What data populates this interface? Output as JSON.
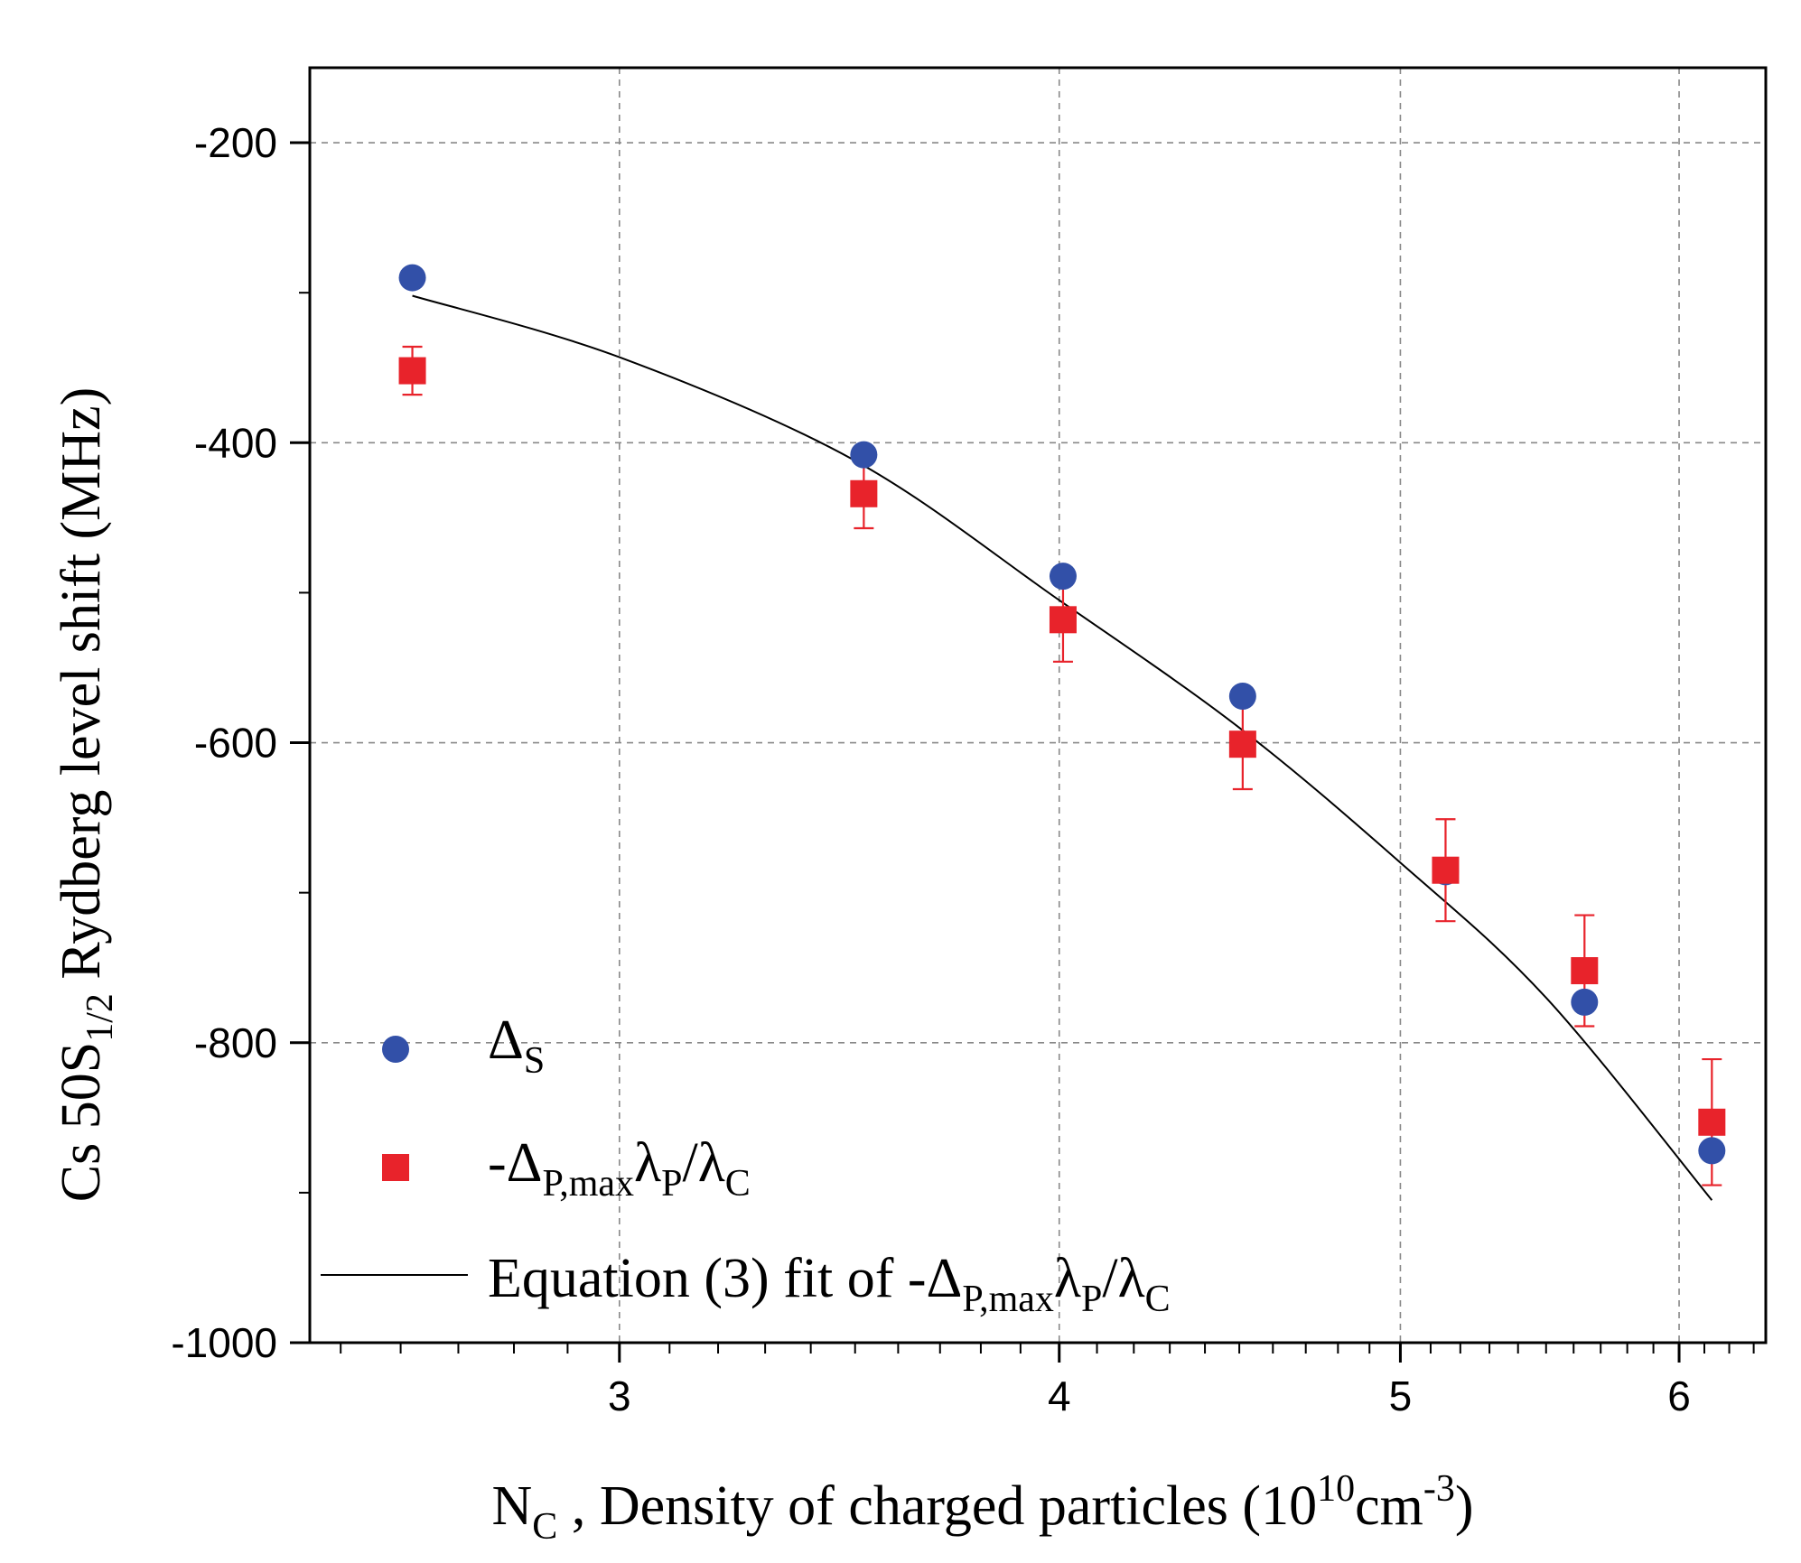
{
  "chart_data": {
    "type": "scatter",
    "xlabel": {
      "symbol": "N",
      "symbol_sub": "C",
      "text": " , Density of charged particles (10",
      "exp": "10",
      "unit": "cm",
      "unit_exp": "-3",
      "close": ")"
    },
    "ylabel": {
      "prefix": "Cs 50S",
      "sub": "1/2",
      "suffix": " Rydberg level shift (MHz)"
    },
    "x_scale": "log",
    "xlim": [
      2.45,
      6.35
    ],
    "ylim": [
      -1000,
      -150
    ],
    "x_ticks": [
      3,
      4,
      5,
      6
    ],
    "x_tick_labels": [
      "3",
      "4",
      "5",
      "6"
    ],
    "y_ticks": [
      -200,
      -400,
      -600,
      -800,
      -1000
    ],
    "y_tick_labels": [
      "-200",
      "-400",
      "-600",
      "-800",
      "-1000"
    ],
    "grid": true,
    "legend_position": "bottom-left",
    "series": [
      {
        "legend": {
          "main": "Δ",
          "sub": "S"
        },
        "marker": "circle",
        "color": "#3250a8",
        "points": [
          {
            "x": 2.62,
            "y": -290
          },
          {
            "x": 3.52,
            "y": -408
          },
          {
            "x": 4.01,
            "y": -489
          },
          {
            "x": 4.51,
            "y": -569
          },
          {
            "x": 5.15,
            "y": -686
          },
          {
            "x": 5.64,
            "y": -773
          },
          {
            "x": 6.13,
            "y": -872
          }
        ]
      },
      {
        "legend": {
          "main": "-Δ",
          "sub1": "P,max",
          "mid": "λ",
          "sub2": "P",
          "slash": "/λ",
          "sub3": "C"
        },
        "marker": "square",
        "color": "#e8232b",
        "points": [
          {
            "x": 2.62,
            "y": -352,
            "err": 16
          },
          {
            "x": 3.52,
            "y": -434,
            "err": 23
          },
          {
            "x": 4.01,
            "y": -518,
            "err": 28
          },
          {
            "x": 4.51,
            "y": -601,
            "err": 30
          },
          {
            "x": 5.15,
            "y": -685,
            "err": 34
          },
          {
            "x": 5.64,
            "y": -752,
            "err": 37
          },
          {
            "x": 6.13,
            "y": -853,
            "err": 42
          }
        ]
      },
      {
        "legend": {
          "prefix": "Equation (3) fit of -Δ",
          "sub1": "P,max",
          "mid": "λ",
          "sub2": "P",
          "slash": "/λ",
          "sub3": "C"
        },
        "marker": "line",
        "color": "#000000",
        "points": [
          {
            "x": 2.62,
            "y": -302
          },
          {
            "x": 3.0,
            "y": -343
          },
          {
            "x": 3.5,
            "y": -412
          },
          {
            "x": 4.0,
            "y": -505
          },
          {
            "x": 4.5,
            "y": -590
          },
          {
            "x": 5.0,
            "y": -680
          },
          {
            "x": 5.5,
            "y": -770
          },
          {
            "x": 6.13,
            "y": -905
          }
        ]
      }
    ]
  }
}
